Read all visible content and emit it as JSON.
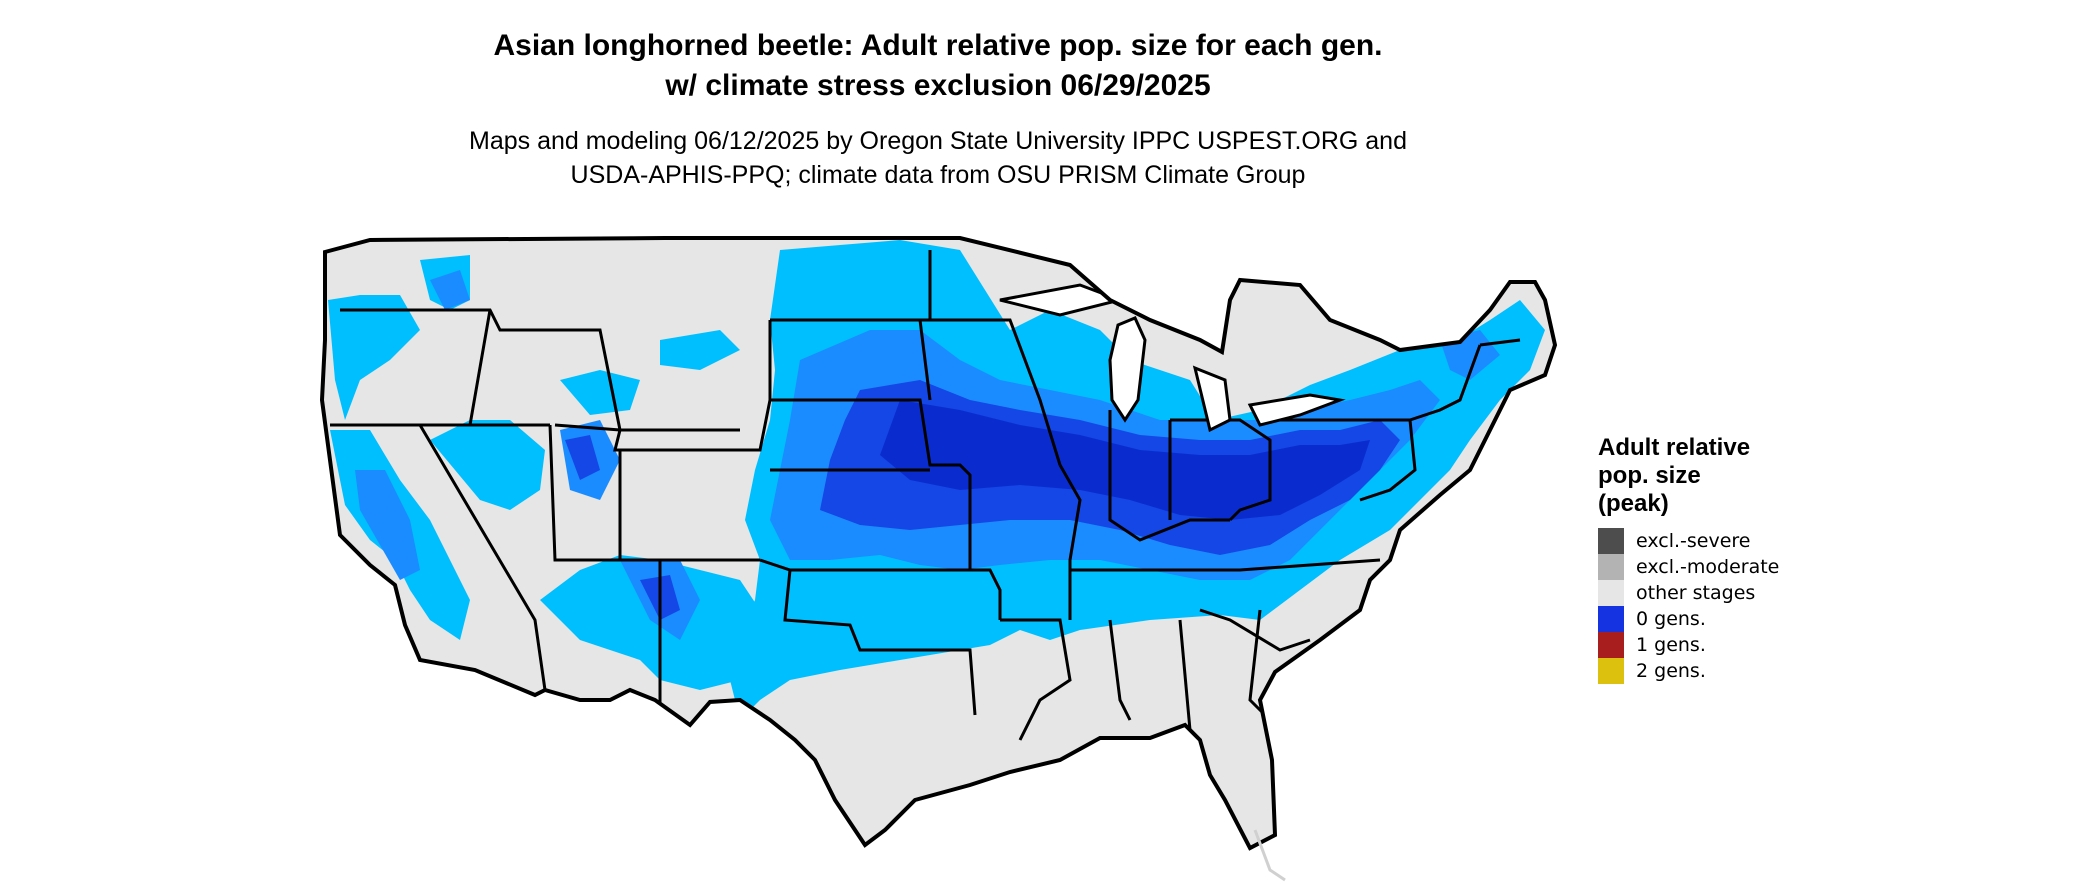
{
  "title_line1": "Asian longhorned beetle: Adult relative pop. size for each gen.",
  "title_line2": "w/ climate stress exclusion 06/29/2025",
  "subtitle_line1": "Maps and modeling 06/12/2025 by Oregon State University IPPC USPEST.ORG and",
  "subtitle_line2": "USDA-APHIS-PPQ; climate data from OSU PRISM Climate Group",
  "legend": {
    "title_line1": "Adult relative",
    "title_line2": "pop. size",
    "title_line3": "(peak)",
    "items": [
      {
        "label": "excl.-severe",
        "color": "#4d4d4d"
      },
      {
        "label": "excl.-moderate",
        "color": "#b3b3b3"
      },
      {
        "label": "other stages",
        "color": "#e6e6e6"
      },
      {
        "label": "0 gens.",
        "color": "#1533e0"
      },
      {
        "label": "1 gens.",
        "color": "#a81e1e"
      },
      {
        "label": "2 gens.",
        "color": "#dcc20e"
      }
    ]
  },
  "colors": {
    "background_land": "#e6e6e6",
    "light_blue": "#00bfff",
    "medium_blue": "#1a8cff",
    "dark_blue": "#1447e6",
    "deep_blue": "#0a2ccf",
    "border": "#000000"
  }
}
